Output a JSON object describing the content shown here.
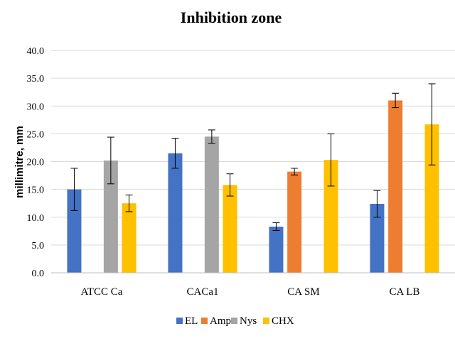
{
  "chart_data": {
    "type": "bar",
    "title": "Inhibition zone",
    "xlabel": "",
    "ylabel": "millimitre, mm",
    "ylim": [
      0,
      40
    ],
    "yticks": [
      "0.0",
      "5.0",
      "10.0",
      "15.0",
      "20.0",
      "25.0",
      "30.0",
      "35.0",
      "40.0"
    ],
    "grid": true,
    "legend_position": "bottom",
    "categories": [
      "ATCC Ca",
      "CACa1",
      "CA SM",
      "CA LB"
    ],
    "series": [
      {
        "name": "EL",
        "color": "#4472c4",
        "values": [
          15.0,
          21.5,
          8.3,
          12.4
        ],
        "errors": [
          3.8,
          2.7,
          0.7,
          2.4
        ]
      },
      {
        "name": "Amp",
        "color": "#ed7d31",
        "values": [
          null,
          null,
          18.2,
          31.0
        ],
        "errors": [
          null,
          null,
          0.6,
          1.3
        ]
      },
      {
        "name": "Nys",
        "color": "#a5a5a5",
        "values": [
          20.2,
          24.5,
          null,
          null
        ],
        "errors": [
          4.2,
          1.2,
          null,
          null
        ]
      },
      {
        "name": "CHX",
        "color": "#ffc000",
        "values": [
          12.5,
          15.8,
          20.3,
          26.7
        ],
        "errors": [
          1.5,
          2.0,
          4.7,
          7.3
        ]
      }
    ]
  }
}
